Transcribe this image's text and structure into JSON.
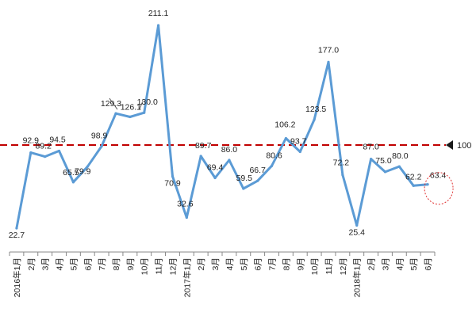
{
  "chart_data": {
    "type": "line",
    "title": "",
    "xlabel": "",
    "ylabel": "",
    "categories": [
      "2016年1月",
      "2月",
      "3月",
      "4月",
      "5月",
      "6月",
      "7月",
      "8月",
      "9月",
      "10月",
      "11月",
      "12月",
      "2017年1月",
      "2月",
      "3月",
      "4月",
      "5月",
      "6月",
      "7月",
      "8月",
      "9月",
      "10月",
      "11月",
      "12月",
      "2018年1月",
      "2月",
      "3月",
      "4月",
      "5月",
      "6月"
    ],
    "series": [
      {
        "color": "#5b9bd5",
        "values": [
          22.7,
          92.9,
          89.2,
          94.5,
          65.5,
          79.9,
          98.9,
          129.3,
          126.1,
          130.0,
          211.1,
          70.9,
          32.6,
          89.7,
          69.4,
          86.0,
          59.5,
          66.7,
          80.6,
          106.2,
          93.7,
          123.5,
          177.0,
          72.2,
          25.4,
          87.0,
          75.0,
          80.0,
          62.2,
          63.4
        ],
        "labels": [
          "22.7",
          "92.9",
          "89.2",
          "94.5",
          "65.5",
          "79.9",
          "98.9",
          "129.3",
          "126.1",
          "130.0",
          "211.1",
          "70.9",
          "32.6",
          "89.7",
          "69.4",
          "86.0",
          "59.5",
          "66.7",
          "80.6",
          "106.2",
          "93.7",
          "123.5",
          "177.0",
          "72.2",
          "25.4",
          "87.0",
          "75.0",
          "80.0",
          "62.2",
          "63.4"
        ]
      }
    ],
    "reference_line": {
      "value": 100,
      "label": "100",
      "color": "#c00000",
      "style": "dashed"
    },
    "highlight": {
      "index": 29,
      "shape": "dotted-circle",
      "color": "#e03030"
    },
    "ylim": [
      0,
      220
    ],
    "grid": false,
    "legend": "none"
  }
}
